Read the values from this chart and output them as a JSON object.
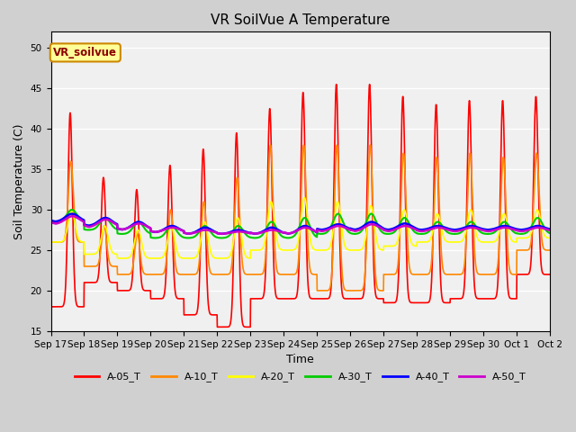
{
  "title": "VR SoilVue A Temperature",
  "xlabel": "Time",
  "ylabel": "Soil Temperature (C)",
  "ylim": [
    15,
    52
  ],
  "yticks": [
    15,
    20,
    25,
    30,
    35,
    40,
    45,
    50
  ],
  "fig_bg_color": "#d0d0d0",
  "plot_bg_color": "#f0f0f0",
  "series": [
    "A-05_T",
    "A-10_T",
    "A-20_T",
    "A-30_T",
    "A-40_T",
    "A-50_T"
  ],
  "colors": [
    "#ff0000",
    "#ff8800",
    "#ffff00",
    "#00cc00",
    "#0000ff",
    "#cc00cc"
  ],
  "linewidths": [
    1.2,
    1.2,
    1.2,
    1.5,
    1.8,
    1.8
  ],
  "label_box_facecolor": "#ffff99",
  "label_box_edgecolor": "#cc8800",
  "label_text": "VR_soilvue",
  "label_text_color": "#8B0000",
  "x_tick_labels": [
    "Sep 17",
    "Sep 18",
    "Sep 19",
    "Sep 20",
    "Sep 21",
    "Sep 22",
    "Sep 23",
    "Sep 24",
    "Sep 25",
    "Sep 26",
    "Sep 27",
    "Sep 28",
    "Sep 29",
    "Sep 30",
    "Oct 1",
    "Oct 2"
  ],
  "num_days": 16
}
